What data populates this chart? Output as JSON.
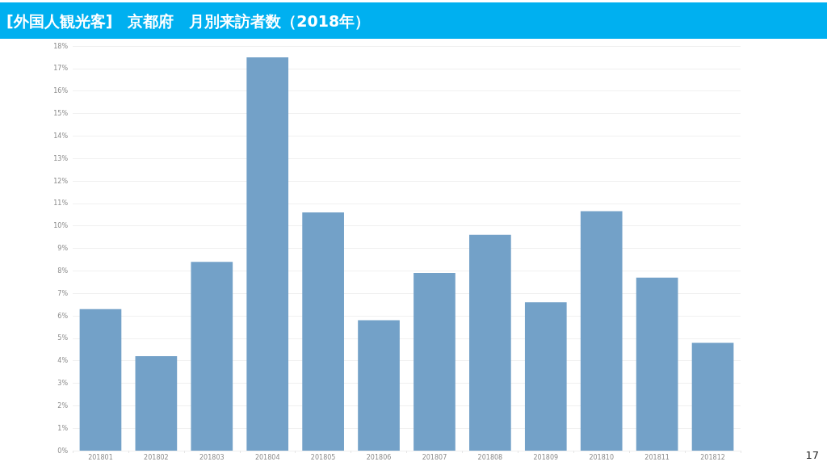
{
  "chart_data": {
    "type": "bar",
    "title": "[外国人観光客]　京都府　月別来訪者数（2018年）",
    "categories": [
      "201801",
      "201802",
      "201803",
      "201804",
      "201805",
      "201806",
      "201807",
      "201808",
      "201809",
      "201810",
      "201811",
      "201812"
    ],
    "values": [
      6.3,
      4.2,
      8.4,
      17.5,
      10.6,
      5.8,
      7.9,
      9.6,
      6.6,
      10.65,
      7.7,
      4.8
    ],
    "color": "#73a1c8",
    "ylim": [
      0,
      18
    ],
    "yticks": [
      {
        "value": 0,
        "label": "0%"
      },
      {
        "value": 1,
        "label": "1%"
      },
      {
        "value": 2,
        "label": "2%"
      },
      {
        "value": 3,
        "label": "3%"
      },
      {
        "value": 4,
        "label": "4%"
      },
      {
        "value": 5,
        "label": "5%"
      },
      {
        "value": 6,
        "label": "6%"
      },
      {
        "value": 7,
        "label": "7%"
      },
      {
        "value": 8,
        "label": "8%"
      },
      {
        "value": 9,
        "label": "9%"
      },
      {
        "value": 10,
        "label": "10%"
      },
      {
        "value": 11,
        "label": "11%"
      },
      {
        "value": 12,
        "label": "12%"
      },
      {
        "value": 13,
        "label": "13%"
      },
      {
        "value": 14,
        "label": "14%"
      },
      {
        "value": 15,
        "label": "15%"
      },
      {
        "value": 16,
        "label": "16%"
      },
      {
        "value": 17,
        "label": "17%"
      },
      {
        "value": 18,
        "label": "18%"
      }
    ],
    "grid": "y",
    "annotations": [
      "17"
    ]
  }
}
